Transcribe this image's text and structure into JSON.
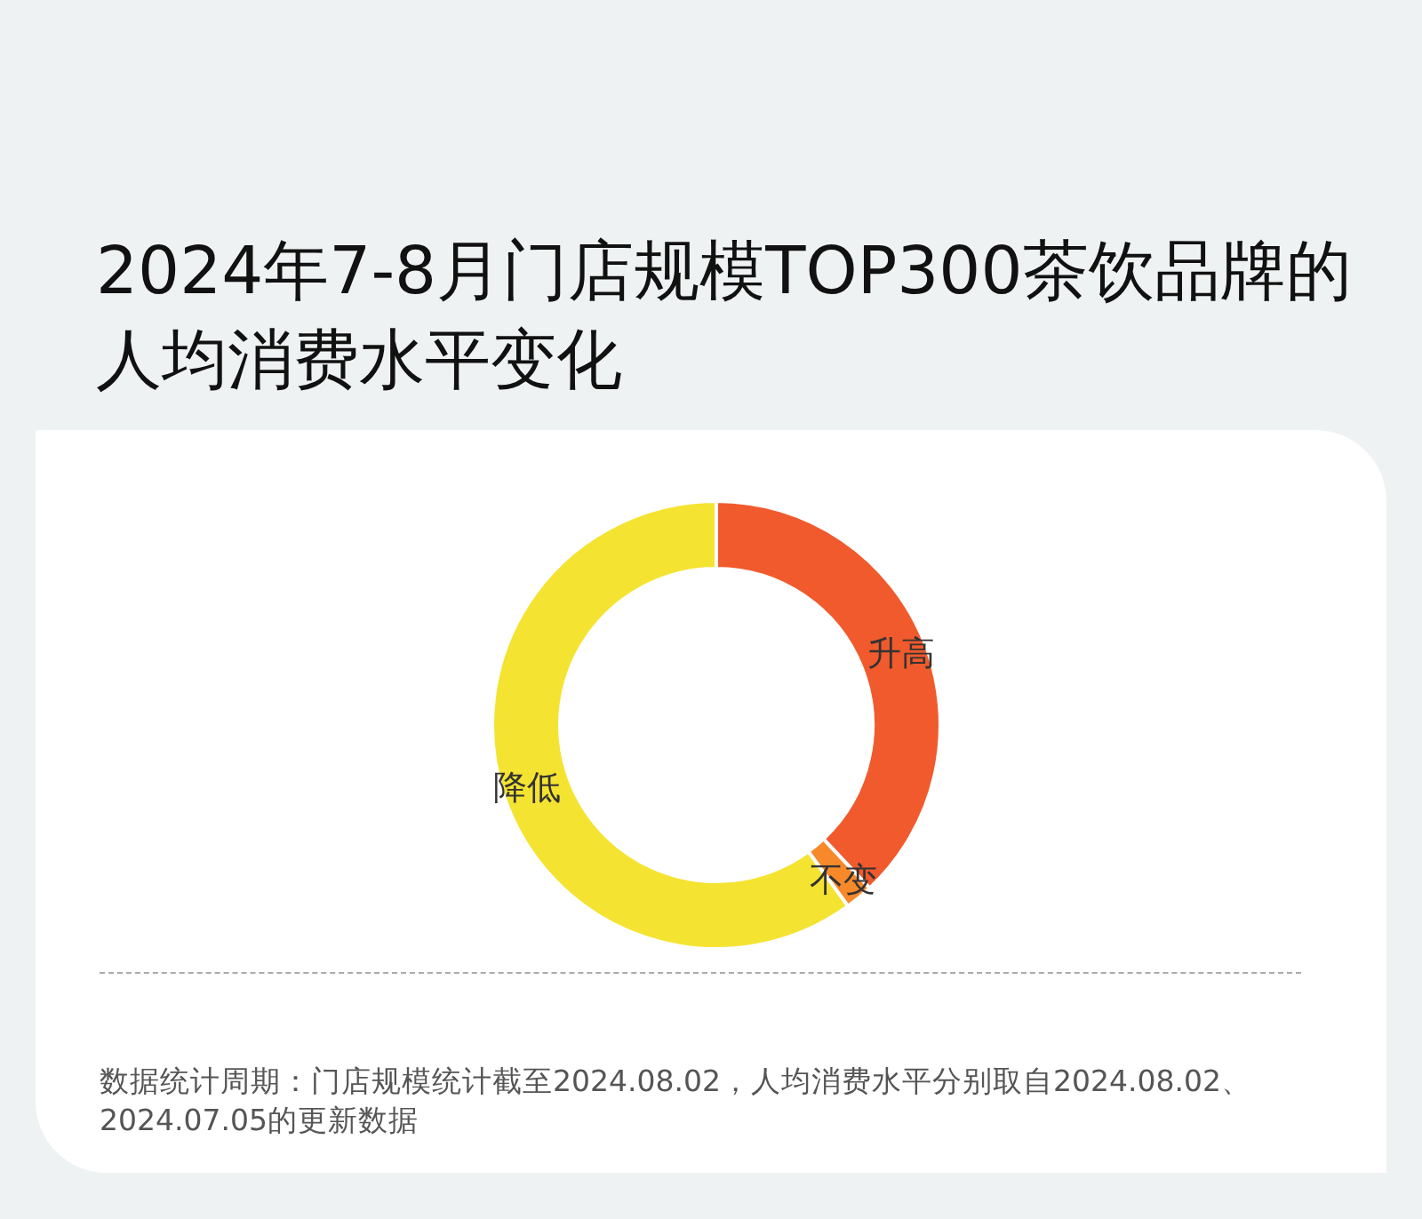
{
  "chart_data": {
    "type": "donut",
    "title": "2024年7-8月门店规模TOP300茶饮品牌的人均消费水平变化",
    "categories": [
      "升高",
      "不变",
      "降低"
    ],
    "values": [
      38,
      2,
      60
    ],
    "colors": [
      "#f15a2c",
      "#f7892a",
      "#f5e331"
    ],
    "annotations": [
      "数据统计周期：门店规模统计截至2024.08.02，人均消费水平分别取自2024.08.02、2024.07.05的更新数据"
    ]
  }
}
